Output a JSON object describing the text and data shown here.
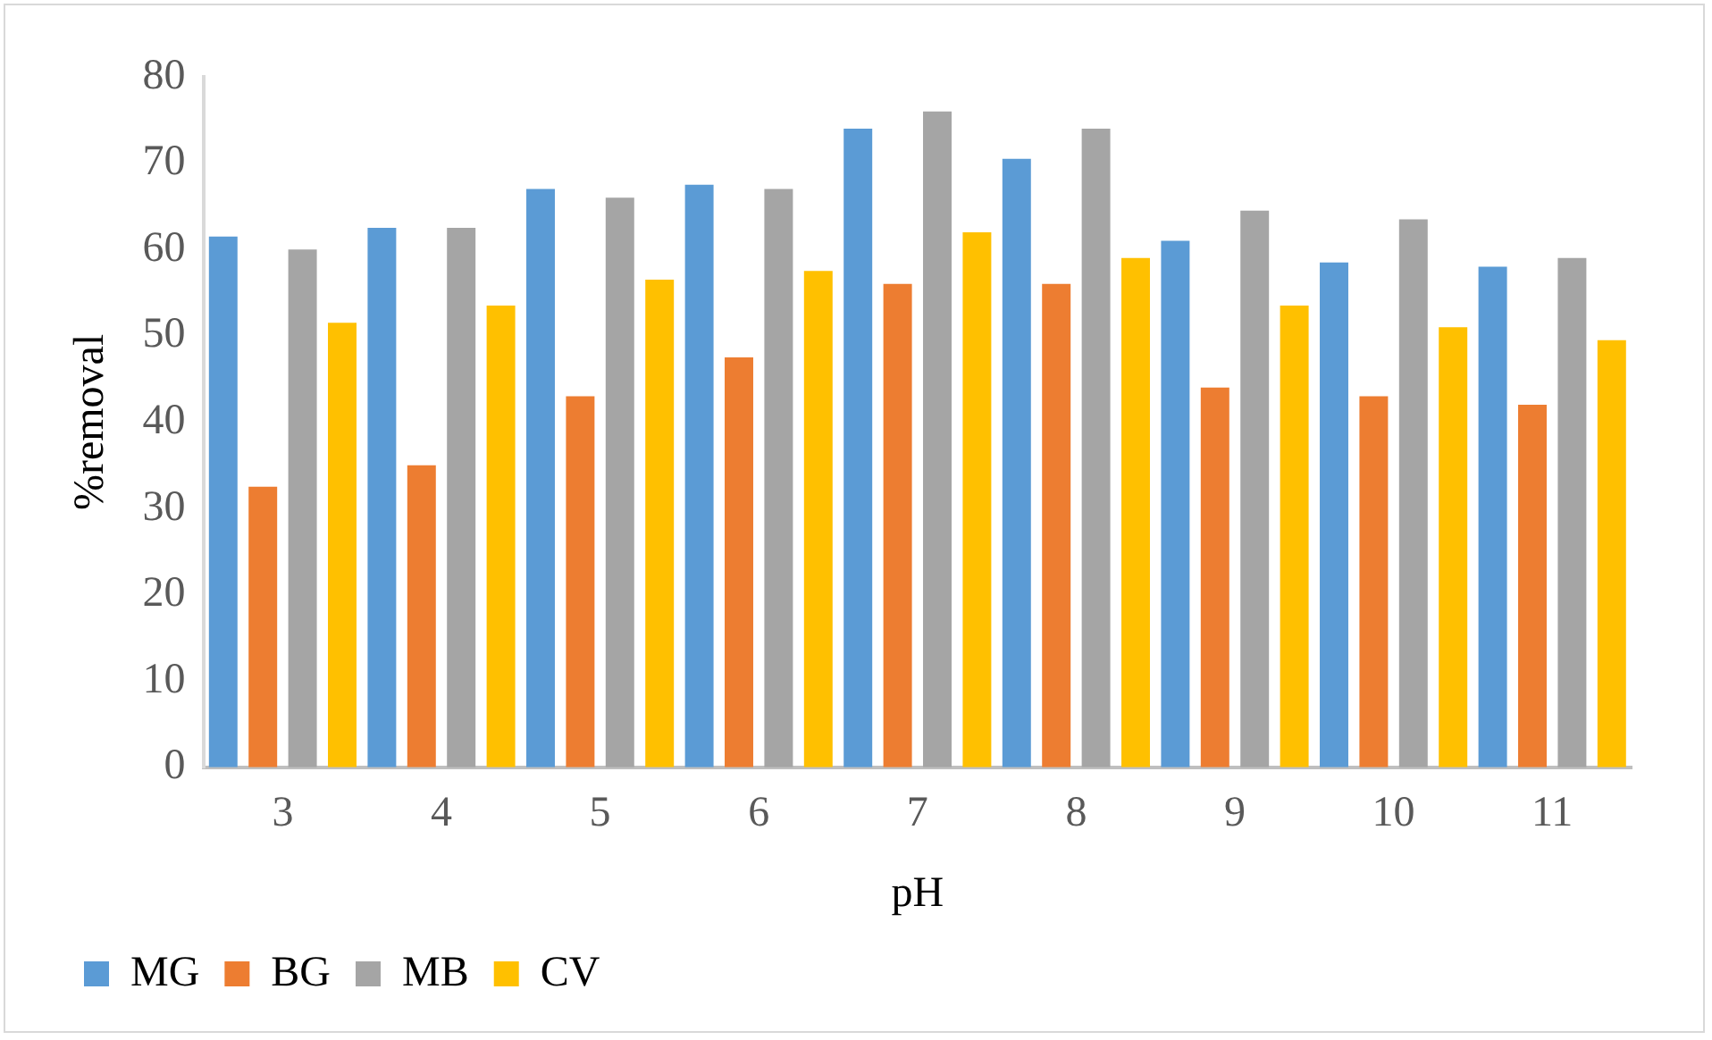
{
  "chart_data": {
    "type": "bar",
    "xlabel": "pH",
    "ylabel": "%removal",
    "categories": [
      "3",
      "4",
      "5",
      "6",
      "7",
      "8",
      "9",
      "10",
      "11"
    ],
    "series": [
      {
        "name": "MG",
        "color": "#5b9bd5",
        "values": [
          61.5,
          62.5,
          67,
          67.5,
          74,
          70.5,
          61,
          58.5,
          58
        ]
      },
      {
        "name": "BG",
        "color": "#ed7d31",
        "values": [
          32.5,
          35,
          43,
          47.5,
          56,
          56,
          44,
          43,
          42
        ]
      },
      {
        "name": "MB",
        "color": "#a5a5a5",
        "values": [
          60,
          62.5,
          66,
          67,
          76,
          74,
          64.5,
          63.5,
          59
        ]
      },
      {
        "name": "CV",
        "color": "#ffc000",
        "values": [
          51.5,
          53.5,
          56.5,
          57.5,
          62,
          59,
          53.5,
          51,
          49.5
        ]
      }
    ],
    "ylim": [
      0,
      80
    ],
    "yticks": [
      0,
      10,
      20,
      30,
      40,
      50,
      60,
      70,
      80
    ],
    "grid": false,
    "legend": "bottom"
  }
}
